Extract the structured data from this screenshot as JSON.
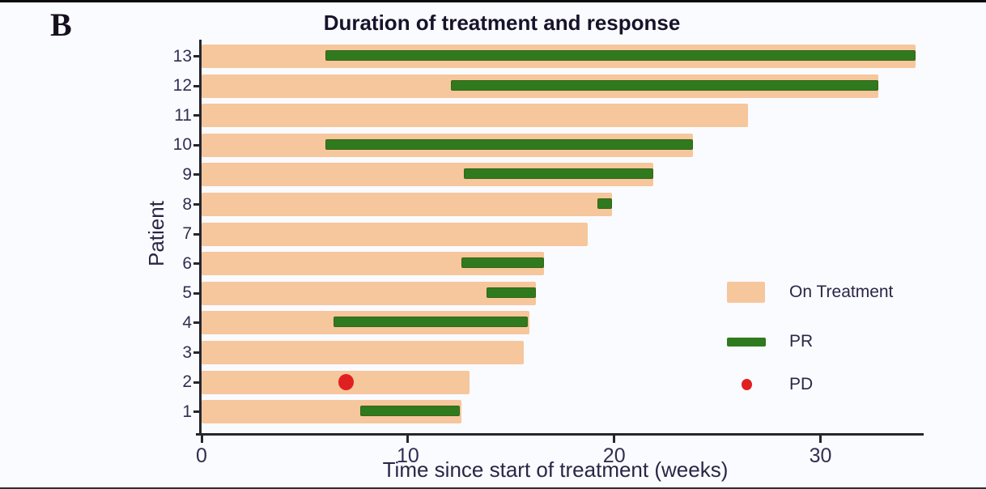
{
  "panel_label": "B",
  "title": "Duration of treatment and response",
  "x_axis": {
    "label": "Time since start of treatment (weeks)",
    "ticks": [
      0,
      10,
      20,
      30
    ],
    "max": 35
  },
  "y_axis": {
    "label": "Patient"
  },
  "legend": [
    {
      "label": "On Treatment",
      "swatch": "box",
      "color": "#f6c69d"
    },
    {
      "label": "PR",
      "swatch": "bar",
      "color": "#2f7a1e"
    },
    {
      "label": "PD",
      "swatch": "dot",
      "color": "#e02020"
    }
  ],
  "colors": {
    "on_treatment": "#f6c69d",
    "pr": "#2f7a1e",
    "pd": "#e02020",
    "axis": "#26262f",
    "text": "#2b2547",
    "background": "#fafbfe"
  },
  "chart_data": {
    "type": "bar",
    "orientation": "horizontal",
    "title": "Duration of treatment and response",
    "xlabel": "Time since start of treatment (weeks)",
    "ylabel": "Patient",
    "xlim": [
      0,
      35
    ],
    "xticks": [
      0,
      10,
      20,
      30
    ],
    "grid": false,
    "legend_position": "right-middle",
    "series_units": "weeks",
    "patients": [
      {
        "patient": 13,
        "on_treatment_weeks": 34.6,
        "pr_start": 6.0,
        "pr_end": 34.6
      },
      {
        "patient": 12,
        "on_treatment_weeks": 32.8,
        "pr_start": 12.1,
        "pr_end": 32.8
      },
      {
        "patient": 11,
        "on_treatment_weeks": 26.5
      },
      {
        "patient": 10,
        "on_treatment_weeks": 23.8,
        "pr_start": 6.0,
        "pr_end": 23.8
      },
      {
        "patient": 9,
        "on_treatment_weeks": 21.9,
        "pr_start": 12.7,
        "pr_end": 21.9
      },
      {
        "patient": 8,
        "on_treatment_weeks": 19.9,
        "pr_start": 19.2,
        "pr_end": 19.9
      },
      {
        "patient": 7,
        "on_treatment_weeks": 18.7
      },
      {
        "patient": 6,
        "on_treatment_weeks": 16.6,
        "pr_start": 12.6,
        "pr_end": 16.6
      },
      {
        "patient": 5,
        "on_treatment_weeks": 16.2,
        "pr_start": 13.8,
        "pr_end": 16.2
      },
      {
        "patient": 4,
        "on_treatment_weeks": 15.9,
        "pr_start": 6.4,
        "pr_end": 15.8
      },
      {
        "patient": 3,
        "on_treatment_weeks": 15.6
      },
      {
        "patient": 2,
        "on_treatment_weeks": 13.0,
        "pd_week": 7.0
      },
      {
        "patient": 1,
        "on_treatment_weeks": 12.6,
        "pr_start": 7.7,
        "pr_end": 12.5
      }
    ]
  }
}
